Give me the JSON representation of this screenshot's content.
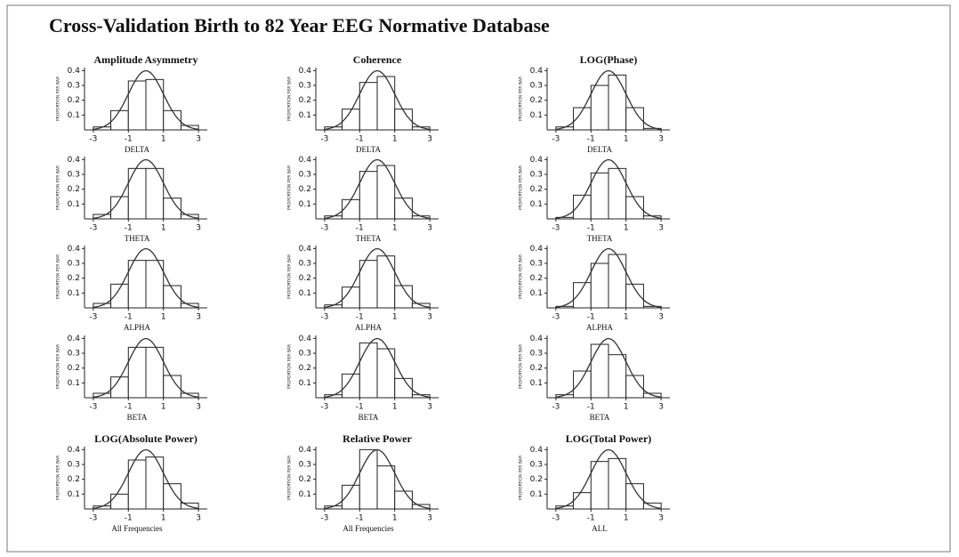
{
  "title": "Cross-Validation Birth to 82 Year EEG Normative Database",
  "chart_data": [
    {
      "type": "histogram",
      "title": "Amplitude Asymmetry",
      "xlabel": "DELTA",
      "ylabel": "PROPORTION PER BAR",
      "bins": [
        -3,
        -2,
        -1,
        0,
        1,
        2,
        3
      ],
      "values": [
        0.02,
        0.13,
        0.33,
        0.34,
        0.13,
        0.03
      ],
      "color": "#ffffff",
      "fit_curve": "normal",
      "xlim": [
        -3.5,
        3.5
      ],
      "ylim": [
        0,
        0.42
      ],
      "xticks": [
        -3,
        -1,
        1,
        3
      ],
      "yticks": [
        0.1,
        0.2,
        0.3,
        0.4
      ]
    },
    {
      "type": "histogram",
      "title": "Coherence",
      "xlabel": "DELTA",
      "ylabel": "PROPORTION PER BAR",
      "bins": [
        -3,
        -2,
        -1,
        0,
        1,
        2,
        3
      ],
      "values": [
        0.02,
        0.14,
        0.32,
        0.36,
        0.14,
        0.02
      ],
      "color": "#ffffff",
      "fit_curve": "normal",
      "xlim": [
        -3.5,
        3.5
      ],
      "ylim": [
        0,
        0.42
      ],
      "xticks": [
        -3,
        -1,
        1,
        3
      ],
      "yticks": [
        0.1,
        0.2,
        0.3,
        0.4
      ]
    },
    {
      "type": "histogram",
      "title": "LOG(Phase)",
      "xlabel": "DELTA",
      "ylabel": "PROPORTION PER BAR",
      "bins": [
        -3,
        -2,
        -1,
        0,
        1,
        2,
        3
      ],
      "values": [
        0.02,
        0.15,
        0.3,
        0.37,
        0.15,
        0.01
      ],
      "color": "#ffffff",
      "fit_curve": "normal",
      "xlim": [
        -3.5,
        3.5
      ],
      "ylim": [
        0,
        0.42
      ],
      "xticks": [
        -3,
        -1,
        1,
        3
      ],
      "yticks": [
        0.1,
        0.2,
        0.3,
        0.4
      ]
    },
    {
      "type": "histogram",
      "xlabel": "THETA",
      "ylabel": "PROPORTION PER BAR",
      "bins": [
        -3,
        -2,
        -1,
        0,
        1,
        2,
        3
      ],
      "values": [
        0.03,
        0.15,
        0.34,
        0.34,
        0.14,
        0.03
      ],
      "color": "#ffffff",
      "fit_curve": "normal",
      "xlim": [
        -3.5,
        3.5
      ],
      "ylim": [
        0,
        0.42
      ],
      "xticks": [
        -3,
        -1,
        1,
        3
      ],
      "yticks": [
        0.1,
        0.2,
        0.3,
        0.4
      ]
    },
    {
      "type": "histogram",
      "xlabel": "THETA",
      "ylabel": "PROPORTION PER BAR",
      "bins": [
        -3,
        -2,
        -1,
        0,
        1,
        2,
        3
      ],
      "values": [
        0.02,
        0.13,
        0.32,
        0.36,
        0.14,
        0.02
      ],
      "color": "#ffffff",
      "fit_curve": "normal",
      "xlim": [
        -3.5,
        3.5
      ],
      "ylim": [
        0,
        0.42
      ],
      "xticks": [
        -3,
        -1,
        1,
        3
      ],
      "yticks": [
        0.1,
        0.2,
        0.3,
        0.4
      ]
    },
    {
      "type": "histogram",
      "xlabel": "THETA",
      "ylabel": "PROPORTION PER BAR",
      "bins": [
        -3,
        -2,
        -1,
        0,
        1,
        2,
        3
      ],
      "values": [
        0.01,
        0.16,
        0.31,
        0.34,
        0.15,
        0.02
      ],
      "color": "#ffffff",
      "fit_curve": "normal",
      "xlim": [
        -3.5,
        3.5
      ],
      "ylim": [
        0,
        0.42
      ],
      "xticks": [
        -3,
        -1,
        1,
        3
      ],
      "yticks": [
        0.1,
        0.2,
        0.3,
        0.4
      ]
    },
    {
      "type": "histogram",
      "xlabel": "ALPHA",
      "ylabel": "PROPORTION PER BAR",
      "bins": [
        -3,
        -2,
        -1,
        0,
        1,
        2,
        3
      ],
      "values": [
        0.03,
        0.16,
        0.32,
        0.32,
        0.15,
        0.03
      ],
      "color": "#ffffff",
      "fit_curve": "normal",
      "xlim": [
        -3.5,
        3.5
      ],
      "ylim": [
        0,
        0.42
      ],
      "xticks": [
        -3,
        -1,
        1,
        3
      ],
      "yticks": [
        0.1,
        0.2,
        0.3,
        0.4
      ]
    },
    {
      "type": "histogram",
      "xlabel": "ALPHA",
      "ylabel": "PROPORTION PER BAR",
      "bins": [
        -3,
        -2,
        -1,
        0,
        1,
        2,
        3
      ],
      "values": [
        0.02,
        0.14,
        0.32,
        0.35,
        0.15,
        0.03
      ],
      "color": "#ffffff",
      "fit_curve": "normal",
      "xlim": [
        -3.5,
        3.5
      ],
      "ylim": [
        0,
        0.42
      ],
      "xticks": [
        -3,
        -1,
        1,
        3
      ],
      "yticks": [
        0.1,
        0.2,
        0.3,
        0.4
      ]
    },
    {
      "type": "histogram",
      "xlabel": "ALPHA",
      "ylabel": "PROPORTION PER BAR",
      "bins": [
        -3,
        -2,
        -1,
        0,
        1,
        2,
        3
      ],
      "values": [
        0.01,
        0.17,
        0.3,
        0.36,
        0.16,
        0.01
      ],
      "color": "#ffffff",
      "fit_curve": "normal",
      "xlim": [
        -3.5,
        3.5
      ],
      "ylim": [
        0,
        0.42
      ],
      "xticks": [
        -3,
        -1,
        1,
        3
      ],
      "yticks": [
        0.1,
        0.2,
        0.3,
        0.4
      ]
    },
    {
      "type": "histogram",
      "xlabel": "BETA",
      "ylabel": "PROPORTION PER BAR",
      "bins": [
        -3,
        -2,
        -1,
        0,
        1,
        2,
        3
      ],
      "values": [
        0.03,
        0.14,
        0.34,
        0.34,
        0.15,
        0.03
      ],
      "color": "#ffffff",
      "fit_curve": "normal",
      "xlim": [
        -3.5,
        3.5
      ],
      "ylim": [
        0,
        0.42
      ],
      "xticks": [
        -3,
        -1,
        1,
        3
      ],
      "yticks": [
        0.1,
        0.2,
        0.3,
        0.4
      ]
    },
    {
      "type": "histogram",
      "xlabel": "BETA",
      "ylabel": "PROPORTION PER BAR",
      "bins": [
        -3,
        -2,
        -1,
        0,
        1,
        2,
        3
      ],
      "values": [
        0.02,
        0.16,
        0.37,
        0.33,
        0.13,
        0.02
      ],
      "color": "#ffffff",
      "fit_curve": "normal",
      "xlim": [
        -3.5,
        3.5
      ],
      "ylim": [
        0,
        0.42
      ],
      "xticks": [
        -3,
        -1,
        1,
        3
      ],
      "yticks": [
        0.1,
        0.2,
        0.3,
        0.4
      ]
    },
    {
      "type": "histogram",
      "xlabel": "BETA",
      "ylabel": "PROPORTION PER BAR",
      "bins": [
        -3,
        -2,
        -1,
        0,
        1,
        2,
        3
      ],
      "values": [
        0.02,
        0.18,
        0.36,
        0.29,
        0.15,
        0.03
      ],
      "color": "#ffffff",
      "fit_curve": "normal",
      "xlim": [
        -3.5,
        3.5
      ],
      "ylim": [
        0,
        0.42
      ],
      "xticks": [
        -3,
        -1,
        1,
        3
      ],
      "yticks": [
        0.1,
        0.2,
        0.3,
        0.4
      ]
    },
    {
      "type": "histogram",
      "title": "LOG(Absolute Power)",
      "xlabel": "All Frequencies",
      "ylabel": "PROPORTION PER BAR",
      "bins": [
        -3,
        -2,
        -1,
        0,
        1,
        2,
        3
      ],
      "values": [
        0.02,
        0.1,
        0.33,
        0.35,
        0.17,
        0.04
      ],
      "color": "#ffffff",
      "fit_curve": "normal",
      "xlim": [
        -3.5,
        3.5
      ],
      "ylim": [
        0,
        0.42
      ],
      "xticks": [
        -3,
        -1,
        1,
        3
      ],
      "yticks": [
        0.1,
        0.2,
        0.3,
        0.4
      ]
    },
    {
      "type": "histogram",
      "title": "Relative Power",
      "xlabel": "All Frequencies",
      "ylabel": "PROPORTION PER BAR",
      "bins": [
        -3,
        -2,
        -1,
        0,
        1,
        2,
        3
      ],
      "values": [
        0.02,
        0.16,
        0.4,
        0.29,
        0.12,
        0.03
      ],
      "color": "#ffffff",
      "fit_curve": "normal",
      "xlim": [
        -3.5,
        3.5
      ],
      "ylim": [
        0,
        0.42
      ],
      "xticks": [
        -3,
        -1,
        1,
        3
      ],
      "yticks": [
        0.1,
        0.2,
        0.3,
        0.4
      ]
    },
    {
      "type": "histogram",
      "title": "LOG(Total Power)",
      "xlabel": "ALL",
      "ylabel": "PROPORTION PER BAR",
      "bins": [
        -3,
        -2,
        -1,
        0,
        1,
        2,
        3
      ],
      "values": [
        0.02,
        0.11,
        0.32,
        0.34,
        0.17,
        0.04
      ],
      "color": "#ffffff",
      "fit_curve": "normal",
      "xlim": [
        -3.5,
        3.5
      ],
      "ylim": [
        0,
        0.42
      ],
      "xticks": [
        -3,
        -1,
        1,
        3
      ],
      "yticks": [
        0.1,
        0.2,
        0.3,
        0.4
      ]
    }
  ]
}
